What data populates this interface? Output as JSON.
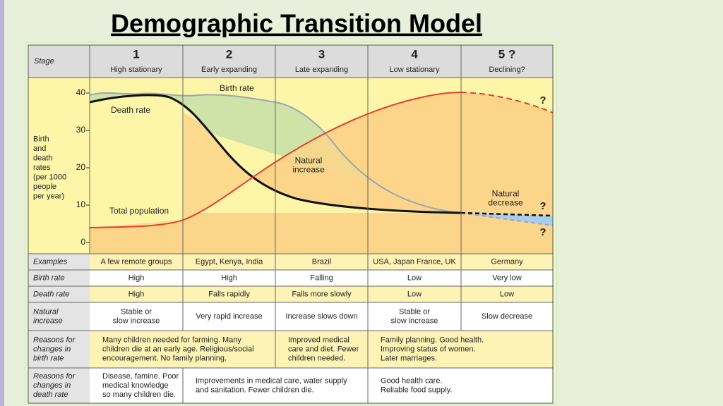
{
  "title": "Demographic Transition Model",
  "header": {
    "label": "Stage",
    "stages": [
      {
        "number": "1",
        "name": "High stationary"
      },
      {
        "number": "2",
        "name": "Early expanding"
      },
      {
        "number": "3",
        "name": "Late expanding"
      },
      {
        "number": "4",
        "name": "Low stationary"
      },
      {
        "number": "5 ?",
        "name": "Declining?"
      }
    ]
  },
  "chart": {
    "axis_label": [
      "Birth",
      "and",
      "death",
      "rates",
      "(per 1000",
      "people",
      "per year)"
    ],
    "ylim": [
      0,
      40
    ],
    "yticks": [
      0,
      10,
      20,
      30,
      40
    ],
    "annotations": {
      "birth_rate": [
        "Birth rate"
      ],
      "death_rate": [
        "Death rate"
      ],
      "natural_increase": [
        "Natural",
        "increase"
      ],
      "total_population": [
        "Total population"
      ],
      "natural_decrease": [
        "Natural",
        "decrease"
      ],
      "question_top": [
        "?"
      ],
      "question_mid": [
        "?"
      ],
      "question_low": [
        "?"
      ]
    }
  },
  "rows": [
    {
      "label": [
        "Examples"
      ],
      "cells": [
        [
          "A few remote groups"
        ],
        [
          "Egypt, Kenya, India"
        ],
        [
          "Brazil"
        ],
        [
          "USA, Japan France, UK"
        ],
        [
          "Germany"
        ]
      ]
    },
    {
      "label": [
        "Birth rate"
      ],
      "cells": [
        [
          "High"
        ],
        [
          "High"
        ],
        [
          "Falling"
        ],
        [
          "Low"
        ],
        [
          "Very low"
        ]
      ]
    },
    {
      "label": [
        "Death rate"
      ],
      "cells": [
        [
          "High"
        ],
        [
          "Falls rapidly"
        ],
        [
          "Falls more slowly"
        ],
        [
          "Low"
        ],
        [
          "Low"
        ]
      ]
    },
    {
      "label": [
        "Natural",
        "increase"
      ],
      "cells": [
        [
          "Stable or",
          "slow increase"
        ],
        [
          "Very rapid increase"
        ],
        [
          "Increase slows down"
        ],
        [
          "Stable or",
          "slow increase"
        ],
        [
          "Slow decrease"
        ]
      ]
    },
    {
      "label": [
        "Reasons for",
        "changes in",
        "birth rate"
      ],
      "cells": [
        [
          "Many children needed for farming. Many",
          "children die at an early age. Religious/social",
          "encouragement. No family planning."
        ],
        [
          "Improved medical",
          "care and diet. Fewer",
          "children needed."
        ],
        [
          "Family planning. Good health.",
          "Improving status of women.",
          "Later marriages."
        ]
      ]
    },
    {
      "label": [
        "Reasons for",
        "changes in",
        "death rate"
      ],
      "cells": [
        [
          "Disease, famine. Poor",
          "medical knowledge",
          "so many children die."
        ],
        [
          "Improvements in medical care, water supply",
          "and sanitation. Fewer children die."
        ],
        [
          "Good health care.",
          "Reliable food supply."
        ]
      ]
    }
  ]
}
